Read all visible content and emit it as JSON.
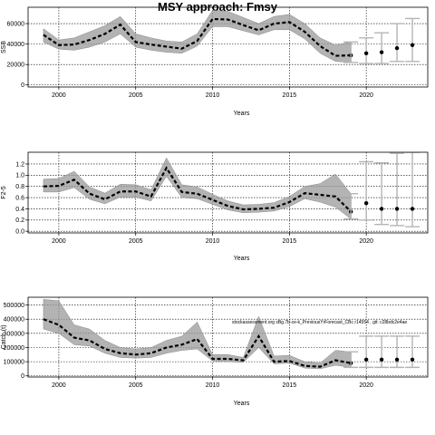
{
  "title": "MSY approach: Fmsy",
  "chart_data": [
    {
      "type": "line",
      "ylabel": "SSB",
      "xlabel": "Years",
      "xlim": [
        1998,
        2024
      ],
      "ylim": [
        -2000,
        76000
      ],
      "xticks": [
        2000,
        2005,
        2010,
        2015,
        2020
      ],
      "yticks": [
        0,
        20000,
        40000,
        60000
      ],
      "ytick_labels": [
        "0",
        "20000",
        "40000",
        "60000"
      ],
      "grid": true,
      "historical": {
        "x": [
          1999,
          2000,
          2001,
          2002,
          2003,
          2004,
          2005,
          2006,
          2007,
          2008,
          2009,
          2010,
          2011,
          2012,
          2013,
          2014,
          2015,
          2016,
          2017,
          2018,
          2019
        ],
        "median": [
          49000,
          39000,
          39500,
          44000,
          50000,
          59000,
          42000,
          39500,
          37500,
          35500,
          43000,
          64500,
          64000,
          58500,
          53500,
          60000,
          61500,
          52000,
          38000,
          28500,
          29000
        ],
        "lower": [
          42000,
          35000,
          34000,
          37000,
          42000,
          50000,
          37000,
          34000,
          32000,
          31000,
          38000,
          57000,
          57000,
          53000,
          49000,
          54000,
          54000,
          45000,
          31000,
          23000,
          22000
        ],
        "upper": [
          55000,
          44000,
          46000,
          52000,
          58000,
          67000,
          50000,
          46000,
          43000,
          42000,
          50000,
          73000,
          72000,
          66000,
          60000,
          67000,
          69000,
          60000,
          46000,
          39000,
          42000
        ]
      },
      "forecast": {
        "x": [
          2020,
          2021,
          2022,
          2023
        ],
        "median": [
          31000,
          32000,
          36000,
          39000
        ],
        "lower": [
          21000,
          21000,
          23000,
          23000
        ],
        "upper": [
          46000,
          51000,
          60000,
          65000
        ]
      },
      "note": ""
    },
    {
      "type": "line",
      "ylabel": "F2-5",
      "xlabel": "Years",
      "xlim": [
        1998,
        2024
      ],
      "ylim": [
        -0.03,
        1.41
      ],
      "xticks": [
        2000,
        2005,
        2010,
        2015,
        2020
      ],
      "yticks": [
        0.0,
        0.2,
        0.4,
        0.6,
        0.8,
        1.0,
        1.2
      ],
      "ytick_labels": [
        "0.0",
        "0.2",
        "0.4",
        "0.6",
        "0.8",
        "1.0",
        "1.2"
      ],
      "grid": true,
      "historical": {
        "x": [
          1999,
          2000,
          2001,
          2002,
          2003,
          2004,
          2005,
          2006,
          2007,
          2008,
          2009,
          2010,
          2011,
          2012,
          2013,
          2014,
          2015,
          2016,
          2017,
          2018,
          2019
        ],
        "median": [
          0.8,
          0.81,
          0.92,
          0.67,
          0.57,
          0.71,
          0.71,
          0.62,
          1.13,
          0.7,
          0.67,
          0.56,
          0.45,
          0.39,
          0.4,
          0.42,
          0.52,
          0.68,
          0.65,
          0.62,
          0.35
        ],
        "lower": [
          0.7,
          0.7,
          0.78,
          0.57,
          0.49,
          0.61,
          0.61,
          0.54,
          0.98,
          0.6,
          0.58,
          0.48,
          0.38,
          0.33,
          0.34,
          0.36,
          0.44,
          0.58,
          0.52,
          0.43,
          0.22
        ],
        "upper": [
          0.93,
          0.94,
          1.07,
          0.79,
          0.68,
          0.84,
          0.83,
          0.74,
          1.31,
          0.83,
          0.79,
          0.66,
          0.54,
          0.47,
          0.48,
          0.51,
          0.62,
          0.8,
          0.85,
          1.02,
          0.67
        ]
      },
      "forecast": {
        "x": [
          2020,
          2021,
          2022,
          2023
        ],
        "median": [
          0.5,
          0.4,
          0.4,
          0.4
        ],
        "lower": [
          0.2,
          0.12,
          0.1,
          0.08
        ],
        "upper": [
          1.24,
          1.22,
          1.39,
          1.41
        ]
      },
      "note": ""
    },
    {
      "type": "line",
      "ylabel": "Catch (t)",
      "xlabel": "Years",
      "xlim": [
        1998,
        2024
      ],
      "ylim": [
        -8000,
        555000
      ],
      "xticks": [
        2000,
        2005,
        2010,
        2015,
        2020
      ],
      "yticks": [
        0,
        100000,
        200000,
        300000,
        400000,
        500000
      ],
      "ytick_labels": [
        "0",
        "100000",
        "200000",
        "300000",
        "400000",
        "500000"
      ],
      "grid": true,
      "historical": {
        "x": [
          1999,
          2000,
          2001,
          2002,
          2003,
          2004,
          2005,
          2006,
          2007,
          2008,
          2009,
          2010,
          2011,
          2012,
          2013,
          2014,
          2015,
          2016,
          2017,
          2018,
          2019
        ],
        "median": [
          400000,
          360000,
          270000,
          250000,
          190000,
          160000,
          150000,
          160000,
          200000,
          220000,
          260000,
          120000,
          120000,
          110000,
          280000,
          100000,
          105000,
          70000,
          65000,
          110000,
          90000
        ],
        "lower": [
          330000,
          300000,
          220000,
          210000,
          160000,
          130000,
          125000,
          130000,
          160000,
          180000,
          190000,
          105000,
          100000,
          95000,
          200000,
          85000,
          90000,
          55000,
          50000,
          75000,
          60000
        ],
        "upper": [
          540000,
          530000,
          360000,
          330000,
          250000,
          200000,
          190000,
          200000,
          250000,
          280000,
          380000,
          150000,
          150000,
          130000,
          420000,
          140000,
          145000,
          100000,
          90000,
          180000,
          170000
        ]
      },
      "forecast": {
        "x": [
          2020,
          2021,
          2022,
          2023
        ],
        "median": [
          115000,
          115000,
          115000,
          115000
        ],
        "lower": [
          60000,
          60000,
          60000,
          60000
        ],
        "upper": [
          280000,
          280000,
          280000,
          280000
        ]
      },
      "note": "stockassessment.org  sBg.7b-ce-k_PreviousYrForecast_CBc  r14554 ,  git: c28bdc2e4ae"
    }
  ]
}
